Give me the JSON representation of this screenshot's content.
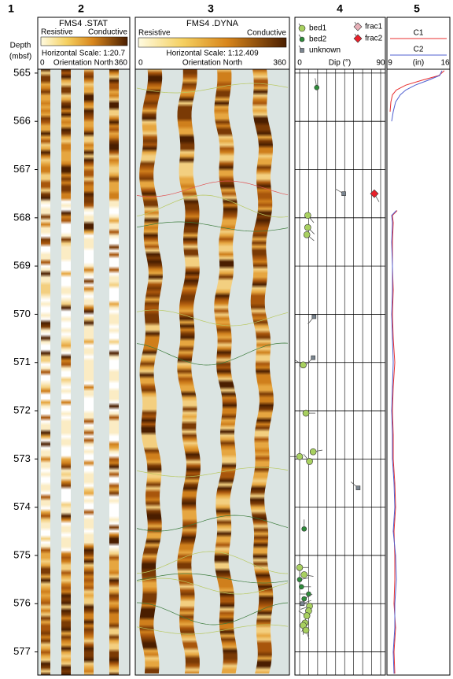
{
  "column_numbers": [
    "1",
    "2",
    "3",
    "4",
    "5"
  ],
  "depth": {
    "label": "Depth",
    "unit": "(mbsf)",
    "ylim": [
      564.92,
      577.48
    ],
    "ticks": [
      565,
      566,
      567,
      568,
      569,
      570,
      571,
      572,
      573,
      574,
      575,
      576,
      577
    ]
  },
  "stat": {
    "title": "FMS4 .STAT",
    "left": "Resistive",
    "right": "Conductive",
    "scale": "Horizontal Scale: 1:20.7",
    "min": "0",
    "axis": "Orientation North",
    "max": "360"
  },
  "dyna": {
    "title": "FMS4 .DYNA",
    "left": "Resistive",
    "right": "Conductive",
    "scale": "Horizontal Scale:  1:12.409",
    "min": "0",
    "axis": "Orientation North",
    "max": "360"
  },
  "dip": {
    "legend": [
      {
        "name": "bed1",
        "color": "#a8d060"
      },
      {
        "name": "bed2",
        "color": "#2e8b3a"
      },
      {
        "name": "unknown",
        "color": "#7a8590"
      },
      {
        "name": "frac1",
        "color": "#e8b0b8"
      },
      {
        "name": "frac2",
        "color": "#e8202a"
      }
    ],
    "label": "Dip (°)",
    "xlim": [
      0,
      90
    ],
    "xticks": [
      0,
      90
    ],
    "gridlines": [
      0,
      10,
      20,
      30,
      40,
      50,
      60,
      70,
      80,
      90
    ],
    "picks": {
      "depth": [
        565.3,
        567.5,
        567.5,
        567.95,
        568.2,
        568.35,
        570.05,
        570.9,
        571.05,
        572.05,
        572.85,
        572.95,
        573.05,
        573.6,
        574.45,
        575.25,
        575.4,
        575.5,
        575.65,
        575.8,
        575.9,
        576.0,
        576.05,
        576.15,
        576.25,
        576.4,
        576.45,
        576.55
      ],
      "dip": [
        19,
        49,
        83,
        9,
        9,
        8,
        16,
        15,
        4,
        7,
        15,
        0,
        11,
        65,
        5,
        0,
        5,
        0,
        2,
        10,
        5,
        3,
        11,
        10,
        8,
        6,
        4,
        7
      ],
      "azimuth": [
        350,
        300,
        150,
        140,
        135,
        130,
        220,
        225,
        300,
        90,
        80,
        270,
        320,
        310,
        0,
        90,
        100,
        80,
        90,
        270,
        60,
        70,
        250,
        200,
        300,
        200,
        180,
        160
      ],
      "type": [
        "bed2",
        "unknown",
        "frac2",
        "bed1",
        "bed1",
        "bed1",
        "unknown",
        "unknown",
        "bed1",
        "bed1",
        "bed1",
        "bed1",
        "bed1",
        "unknown",
        "bed2",
        "bed1",
        "bed1",
        "bed2",
        "bed2",
        "bed2",
        "bed2",
        "unknown",
        "bed1",
        "bed1",
        "bed1",
        "bed1",
        "bed1",
        "bed1"
      ]
    }
  },
  "caliper": {
    "unit": "(in)",
    "xlim": [
      9,
      16
    ],
    "xticks": [
      9,
      16
    ],
    "depth": [
      564.95,
      565.05,
      565.15,
      565.25,
      565.35,
      565.45,
      565.6,
      565.8,
      566.0,
      567.0,
      567.85,
      567.95,
      568.1,
      568.5,
      569,
      569.5,
      570,
      570.5,
      571,
      571.5,
      572,
      572.5,
      573,
      573.5,
      574,
      574.5,
      575,
      575.5,
      576,
      576.5,
      577,
      577.45
    ],
    "series": [
      {
        "name": "C1",
        "color": "#e83030",
        "values": [
          15.9,
          15.2,
          13.0,
          11.0,
          9.8,
          9.3,
          9.1,
          9.0,
          null,
          null,
          9.9,
          9.3,
          9.4,
          9.3,
          9.3,
          9.4,
          9.3,
          9.4,
          9.6,
          9.4,
          9.3,
          9.4,
          9.4,
          9.6,
          9.7,
          9.5,
          9.6,
          9.6,
          9.5,
          9.7,
          9.5,
          9.6
        ]
      },
      {
        "name": "C2",
        "color": "#5060d0",
        "values": [
          15.6,
          15.3,
          13.8,
          12.2,
          11.0,
          10.3,
          9.7,
          9.4,
          9.2,
          null,
          9.8,
          9.2,
          9.3,
          9.2,
          9.3,
          9.3,
          9.2,
          9.3,
          9.4,
          9.3,
          9.2,
          9.3,
          9.3,
          9.5,
          9.6,
          9.4,
          9.7,
          9.8,
          9.6,
          9.6,
          9.4,
          9.5
        ]
      }
    ]
  }
}
